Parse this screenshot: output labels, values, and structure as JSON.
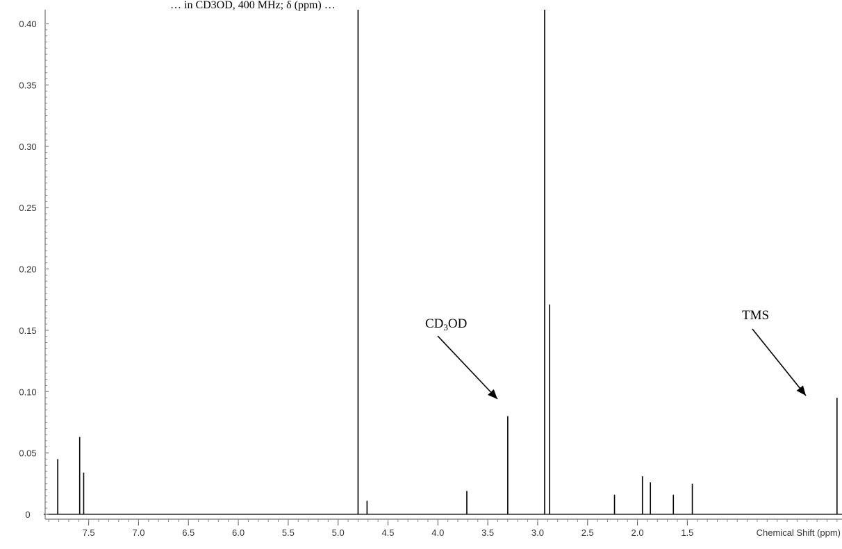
{
  "header_fragment": "… in CD3OD, 400 MHz; δ (ppm) …",
  "chart_data": {
    "type": "line",
    "title": "",
    "xlabel": "Chemical Shift (ppm)",
    "ylabel": "",
    "x_reversed": true,
    "xlim": [
      7.95,
      -0.05
    ],
    "ylim": [
      -0.006,
      0.413
    ],
    "x_ticks": [
      "7.5",
      "7.0",
      "6.5",
      "6.0",
      "5.5",
      "5.0",
      "4.5",
      "4.0",
      "3.5",
      "3.0",
      "2.5",
      "2.0",
      "1.5"
    ],
    "y_ticks": [
      "0",
      "0.05",
      "0.10",
      "0.15",
      "0.20",
      "0.25",
      "0.30",
      "0.35",
      "0.40"
    ],
    "series_color": "#000000",
    "peaks": [
      {
        "x": 7.81,
        "y": 0.045
      },
      {
        "x": 7.59,
        "y": 0.063
      },
      {
        "x": 7.55,
        "y": 0.034
      },
      {
        "x": 4.8,
        "y": 0.413
      },
      {
        "x": 4.71,
        "y": 0.011
      },
      {
        "x": 3.71,
        "y": 0.019
      },
      {
        "x": 3.3,
        "y": 0.08
      },
      {
        "x": 2.93,
        "y": 0.413
      },
      {
        "x": 2.88,
        "y": 0.171
      },
      {
        "x": 2.23,
        "y": 0.016
      },
      {
        "x": 1.95,
        "y": 0.031
      },
      {
        "x": 1.87,
        "y": 0.026
      },
      {
        "x": 1.64,
        "y": 0.016
      },
      {
        "x": 1.45,
        "y": 0.025
      },
      {
        "x": 0.0,
        "y": 0.095
      }
    ],
    "annotations": [
      {
        "label_main": "CD",
        "label_sub": "3",
        "label_tail": "OD",
        "points_to_x": 3.3
      },
      {
        "label_main": "TMS",
        "label_sub": "",
        "label_tail": "",
        "points_to_x": 0.0
      }
    ]
  }
}
